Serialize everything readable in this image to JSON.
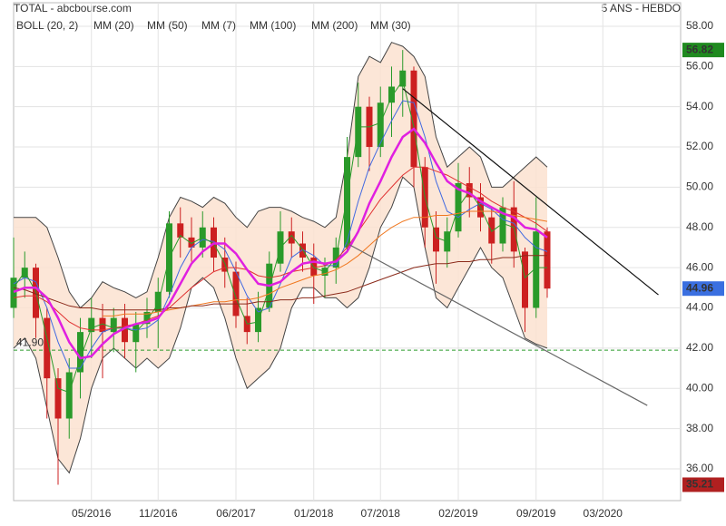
{
  "chart_data": {
    "type": "candlestick",
    "title": "TOTAL - abcbourse.com",
    "subtitle": "5 ANS - HEBDO",
    "x": [
      "2015-10",
      "2015-11",
      "2015-12",
      "2016-01",
      "2016-02",
      "2016-03",
      "2016-04",
      "2016-05",
      "2016-06",
      "2016-07",
      "2016-08",
      "2016-09",
      "2016-10",
      "2016-11",
      "2016-12",
      "2017-01",
      "2017-02",
      "2017-03",
      "2017-04",
      "2017-05",
      "2017-06",
      "2017-07",
      "2017-08",
      "2017-09",
      "2017-10",
      "2017-11",
      "2017-12",
      "2018-01",
      "2018-02",
      "2018-03",
      "2018-04",
      "2018-05",
      "2018-06",
      "2018-07",
      "2018-08",
      "2018-09",
      "2018-10",
      "2018-11",
      "2018-12",
      "2019-01",
      "2019-02",
      "2019-03",
      "2019-04",
      "2019-05",
      "2019-06",
      "2019-07",
      "2019-08",
      "2019-09",
      "2019-10"
    ],
    "open": [
      44.0,
      45.5,
      46.0,
      43.5,
      40.5,
      38.5,
      40.8,
      42.8,
      43.5,
      42.8,
      43.5,
      42.3,
      43.2,
      43.8,
      44.8,
      48.2,
      47.5,
      47.0,
      48.0,
      46.5,
      45.8,
      43.6,
      42.8,
      44.0,
      46.2,
      47.8,
      47.2,
      46.5,
      45.6,
      46.0,
      47.0,
      51.5,
      54.0,
      52.0,
      54.2,
      55.0,
      55.8,
      51.0,
      48.0,
      46.8,
      47.8,
      50.2,
      49.5,
      48.5,
      47.2,
      49.0,
      46.8,
      44.0,
      47.8
    ],
    "high": [
      47.5,
      46.8,
      46.2,
      44.0,
      41.0,
      41.5,
      43.5,
      44.5,
      44.2,
      44.0,
      44.2,
      43.8,
      44.5,
      45.5,
      48.8,
      49.0,
      48.5,
      48.8,
      48.5,
      47.5,
      46.3,
      44.5,
      44.8,
      46.8,
      48.8,
      48.5,
      47.8,
      47.2,
      46.5,
      47.5,
      52.5,
      55.2,
      54.5,
      55.0,
      56.0,
      56.82,
      56.0,
      51.5,
      48.8,
      48.5,
      51.2,
      51.0,
      50.2,
      49.0,
      49.5,
      50.3,
      47.0,
      49.5,
      48.0
    ],
    "low": [
      43.5,
      44.5,
      42.5,
      38.5,
      35.21,
      37.5,
      39.5,
      41.5,
      40.5,
      41.8,
      41.5,
      40.8,
      42.5,
      42.0,
      44.5,
      46.5,
      46.3,
      46.5,
      45.8,
      45.0,
      43.0,
      42.2,
      42.3,
      43.8,
      45.8,
      46.5,
      45.8,
      44.2,
      44.5,
      45.2,
      46.8,
      51.0,
      50.8,
      51.5,
      52.5,
      53.5,
      50.0,
      47.0,
      45.2,
      46.0,
      47.5,
      48.5,
      47.8,
      46.2,
      46.8,
      46.0,
      42.8,
      43.5,
      44.5
    ],
    "close": [
      45.5,
      46.0,
      43.5,
      40.5,
      38.5,
      40.8,
      42.8,
      43.5,
      42.8,
      43.5,
      42.3,
      43.2,
      43.8,
      44.8,
      48.2,
      47.5,
      47.0,
      48.0,
      46.5,
      45.8,
      43.6,
      42.8,
      44.0,
      46.2,
      47.8,
      47.2,
      46.5,
      45.6,
      46.0,
      47.0,
      51.5,
      54.0,
      52.0,
      54.2,
      55.0,
      55.8,
      51.0,
      48.0,
      46.8,
      47.8,
      50.2,
      49.5,
      48.5,
      47.2,
      49.0,
      46.8,
      44.0,
      47.8,
      44.96
    ],
    "up_color": "#2a9a2a",
    "down_color": "#cc2020",
    "bollinger": {
      "name": "BOLL (20, 2)",
      "color": "#444444",
      "fill": "#fbe2d0",
      "upper": [
        48.5,
        48.5,
        48.5,
        48.0,
        46.5,
        44.8,
        44.0,
        44.5,
        45.3,
        45.0,
        44.8,
        44.5,
        44.8,
        46.5,
        48.5,
        49.5,
        49.3,
        49.0,
        49.5,
        49.2,
        48.5,
        48.0,
        48.8,
        49.0,
        49.0,
        48.8,
        48.5,
        48.3,
        48.0,
        48.5,
        51.5,
        55.5,
        56.5,
        56.2,
        57.2,
        57.0,
        56.5,
        55.5,
        52.5,
        51.0,
        51.5,
        52.0,
        51.5,
        50.0,
        50.0,
        50.5,
        51.0,
        51.5,
        51.0
      ],
      "lower": [
        42.0,
        42.5,
        41.5,
        39.0,
        36.5,
        35.8,
        37.5,
        40.0,
        41.5,
        42.0,
        41.5,
        41.0,
        41.5,
        41.0,
        41.5,
        43.0,
        45.0,
        45.5,
        45.0,
        43.5,
        41.5,
        40.0,
        40.5,
        41.0,
        42.0,
        44.0,
        45.0,
        45.0,
        44.5,
        44.5,
        44.0,
        44.5,
        46.0,
        48.0,
        49.0,
        50.5,
        50.0,
        47.0,
        44.5,
        44.0,
        45.0,
        46.0,
        47.0,
        46.0,
        45.5,
        44.0,
        42.5,
        42.2,
        42.0
      ]
    },
    "series": [
      {
        "name": "MM (20)",
        "color": "#4169e1",
        "width": 1,
        "values": [
          45.2,
          45.5,
          45.3,
          44.0,
          42.3,
          41.0,
          41.0,
          42.0,
          42.8,
          43.0,
          43.0,
          42.9,
          43.0,
          43.4,
          44.6,
          46.0,
          47.0,
          47.4,
          47.3,
          46.9,
          45.8,
          44.6,
          43.8,
          44.0,
          45.2,
          46.5,
          46.9,
          46.6,
          46.1,
          46.1,
          47.3,
          49.3,
          51.0,
          52.2,
          53.3,
          54.3,
          54.2,
          52.5,
          50.3,
          48.8,
          48.5,
          48.9,
          49.2,
          48.9,
          48.4,
          48.2,
          47.5,
          47.0,
          46.8
        ]
      },
      {
        "name": "MM (50)",
        "color": "#e03030",
        "width": 1,
        "values": [
          44.5,
          44.6,
          44.6,
          44.3,
          43.8,
          43.3,
          43.0,
          42.9,
          42.9,
          43.0,
          43.1,
          43.2,
          43.4,
          43.6,
          44.0,
          44.5,
          45.0,
          45.4,
          45.8,
          46.0,
          46.0,
          45.9,
          45.6,
          45.5,
          45.6,
          45.8,
          45.9,
          46.0,
          46.1,
          46.4,
          47.0,
          47.8,
          48.6,
          49.4,
          50.0,
          50.6,
          51.0,
          51.0,
          50.8,
          50.6,
          50.3,
          50.0,
          49.7,
          49.3,
          49.0,
          48.8,
          48.5,
          48.2,
          47.8
        ]
      },
      {
        "name": "MM (7)",
        "color": "#2a9a2a",
        "width": 1,
        "values": [
          45.0,
          45.8,
          44.8,
          42.5,
          40.0,
          39.8,
          41.5,
          43.0,
          43.2,
          43.0,
          43.0,
          42.8,
          43.4,
          44.2,
          46.5,
          47.6,
          47.2,
          47.5,
          47.2,
          46.2,
          44.5,
          43.2,
          43.3,
          45.0,
          47.0,
          47.6,
          46.9,
          46.0,
          45.8,
          46.5,
          49.5,
          53.0,
          53.0,
          53.2,
          54.5,
          55.3,
          53.0,
          49.5,
          47.5,
          47.3,
          49.0,
          49.8,
          49.0,
          47.8,
          48.2,
          48.0,
          45.5,
          46.0,
          46.0
        ]
      },
      {
        "name": "MM (100)",
        "color": "#f07820",
        "width": 1,
        "values": [
          null,
          null,
          null,
          null,
          null,
          null,
          null,
          null,
          43.6,
          43.6,
          43.7,
          43.7,
          43.7,
          43.8,
          43.9,
          44.0,
          44.1,
          44.2,
          44.3,
          44.3,
          44.4,
          44.4,
          44.5,
          44.7,
          45.0,
          45.2,
          45.4,
          45.6,
          45.7,
          45.9,
          46.2,
          46.6,
          47.1,
          47.6,
          48.0,
          48.3,
          48.5,
          48.5,
          48.6,
          48.6,
          48.7,
          48.8,
          48.8,
          48.8,
          48.7,
          48.6,
          48.5,
          48.4,
          48.3
        ]
      },
      {
        "name": "MM (200)",
        "color": "#8b2a1a",
        "width": 1,
        "values": [
          45.0,
          44.9,
          44.7,
          44.5,
          44.3,
          44.1,
          44.0,
          44.0,
          43.9,
          43.9,
          43.9,
          43.9,
          43.9,
          43.9,
          44.0,
          44.0,
          44.1,
          44.1,
          44.2,
          44.2,
          44.2,
          44.2,
          44.3,
          44.3,
          44.4,
          44.4,
          44.5,
          44.5,
          44.6,
          44.7,
          44.8,
          45.0,
          45.2,
          45.4,
          45.6,
          45.8,
          46.0,
          46.1,
          46.2,
          46.2,
          46.3,
          46.3,
          46.4,
          46.4,
          46.5,
          46.5,
          46.6,
          46.6,
          46.6
        ]
      },
      {
        "name": "MM (30)",
        "color": "#e020e0",
        "width": 2.5,
        "values": [
          44.8,
          45.0,
          45.0,
          44.5,
          43.5,
          42.3,
          41.5,
          41.6,
          42.2,
          42.7,
          43.0,
          43.2,
          43.3,
          43.5,
          44.2,
          45.2,
          46.2,
          46.8,
          47.2,
          47.2,
          46.7,
          45.9,
          45.2,
          45.1,
          45.3,
          45.8,
          46.2,
          46.3,
          46.2,
          46.3,
          46.8,
          47.8,
          49.2,
          50.3,
          51.5,
          52.5,
          52.9,
          52.2,
          51.2,
          50.3,
          49.9,
          49.7,
          49.3,
          49.0,
          48.7,
          48.5,
          48.0,
          47.9,
          47.5
        ]
      }
    ],
    "trendlines": [
      {
        "color": "#111111",
        "x": [
          "2018-09",
          "2020-08"
        ],
        "values": [
          54.9,
          44.65
        ]
      },
      {
        "color": "#666666",
        "x": [
          "2018-04",
          "2020-07"
        ],
        "values": [
          47.2,
          39.15
        ]
      }
    ],
    "hline": {
      "value": 41.9,
      "label": "41.90",
      "color": "#2a9a2a"
    },
    "price_labels": [
      {
        "value": 56.82,
        "color": "#1f8a1f"
      },
      {
        "value": 44.96,
        "color": "#3a6fe0"
      },
      {
        "value": 35.21,
        "color": "#b02020"
      }
    ],
    "xlim": [
      "2015-10",
      "2020-10"
    ],
    "xticks": [
      {
        "value": "2016-05",
        "label": "05/2016"
      },
      {
        "value": "2016-11",
        "label": "11/2016"
      },
      {
        "value": "2017-06",
        "label": "06/2017"
      },
      {
        "value": "2018-01",
        "label": "01/2018"
      },
      {
        "value": "2018-07",
        "label": "07/2018"
      },
      {
        "value": "2019-02",
        "label": "02/2019"
      },
      {
        "value": "2019-09",
        "label": "09/2019"
      },
      {
        "value": "2020-03",
        "label": "03/2020"
      }
    ],
    "ylim": [
      34.42,
      59.17
    ],
    "yticks": [
      {
        "value": 36,
        "label": "36.00"
      },
      {
        "value": 38,
        "label": "38.00"
      },
      {
        "value": 40,
        "label": "40.00"
      },
      {
        "value": 42,
        "label": "42.00"
      },
      {
        "value": 44,
        "label": "44.00"
      },
      {
        "value": 46,
        "label": "46.00"
      },
      {
        "value": 48,
        "label": "48.00"
      },
      {
        "value": 50,
        "label": "50.00"
      },
      {
        "value": 52,
        "label": "52.00"
      },
      {
        "value": 54,
        "label": "54.00"
      },
      {
        "value": 56,
        "label": "56.00"
      },
      {
        "value": 58,
        "label": "58.00"
      }
    ],
    "grid": true
  }
}
